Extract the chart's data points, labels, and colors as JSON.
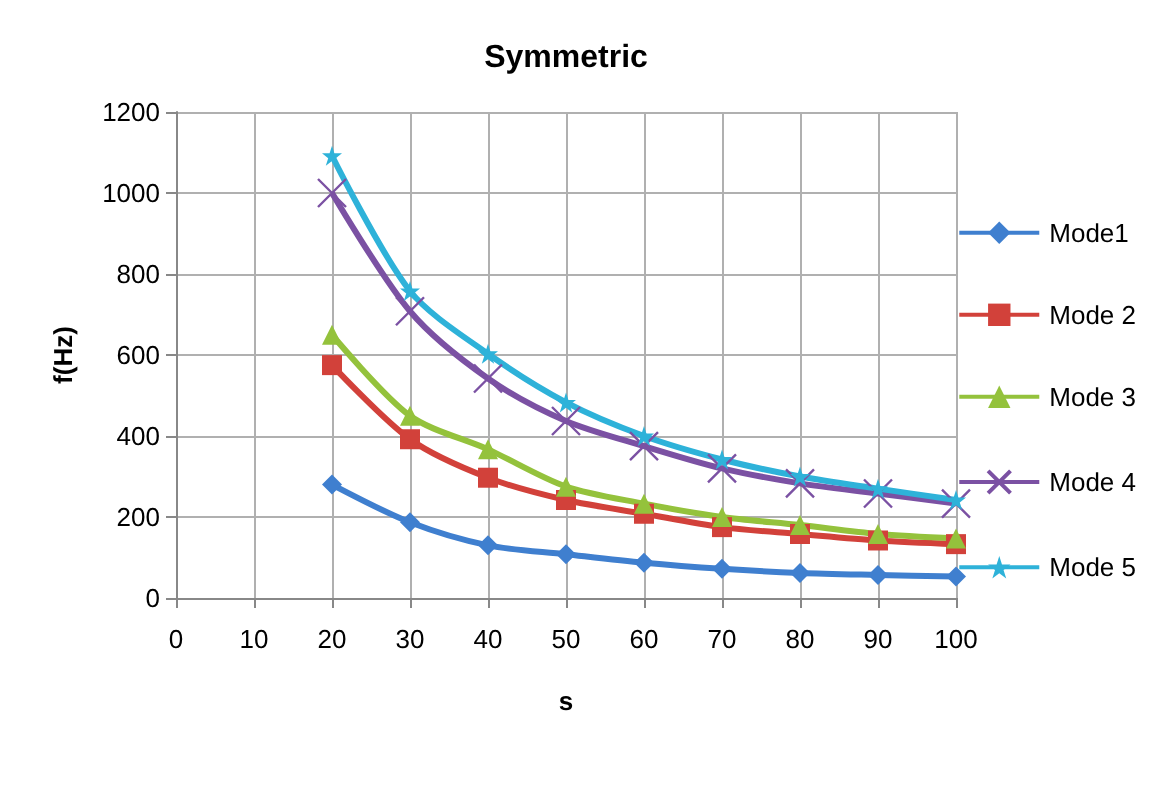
{
  "chart_data": {
    "type": "line",
    "title": "Symmetric",
    "xlabel": "s",
    "ylabel": "f(Hz)",
    "x": [
      20,
      30,
      40,
      50,
      60,
      70,
      80,
      90,
      100
    ],
    "xlim": [
      0,
      100
    ],
    "xticks": [
      0,
      10,
      20,
      30,
      40,
      50,
      60,
      70,
      80,
      90,
      100
    ],
    "ylim": [
      0,
      1200
    ],
    "yticks": [
      0,
      200,
      400,
      600,
      800,
      1000,
      1200
    ],
    "grid": true,
    "legend": "right",
    "line_style": "solid",
    "series": [
      {
        "name": "Mode1",
        "color": "#3f7fcf",
        "marker": "diamond",
        "values": [
          280,
          187,
          130,
          108,
          87,
          72,
          62,
          57,
          53
        ]
      },
      {
        "name": "Mode 2",
        "color": "#d2413a",
        "marker": "square",
        "values": [
          575,
          392,
          297,
          242,
          208,
          175,
          158,
          142,
          133
        ]
      },
      {
        "name": "Mode 3",
        "color": "#94c23c",
        "marker": "triangle",
        "values": [
          650,
          450,
          367,
          275,
          233,
          200,
          180,
          158,
          147
        ]
      },
      {
        "name": "Mode 4",
        "color": "#7b51a3",
        "marker": "cross",
        "values": [
          1000,
          708,
          542,
          437,
          375,
          320,
          283,
          258,
          233
        ]
      },
      {
        "name": "Mode 5",
        "color": "#2eb2d9",
        "marker": "star",
        "values": [
          1092,
          758,
          603,
          483,
          400,
          342,
          300,
          270,
          242
        ]
      }
    ]
  }
}
